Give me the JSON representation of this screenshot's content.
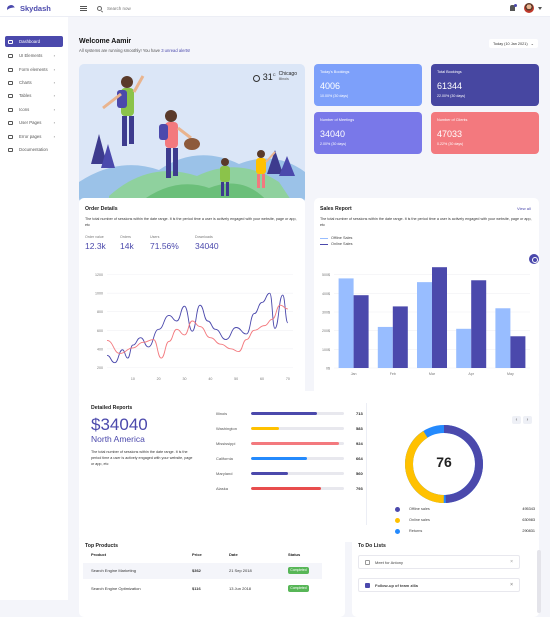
{
  "app": {
    "name": "Skydash"
  },
  "header": {
    "search_placeholder": "Search now"
  },
  "sidebar": {
    "items": [
      {
        "label": "Dashboard",
        "chevron": "",
        "active": true
      },
      {
        "label": "UI Elements",
        "chevron": "›"
      },
      {
        "label": "Form elements",
        "chevron": "›"
      },
      {
        "label": "Charts",
        "chevron": "›"
      },
      {
        "label": "Tables",
        "chevron": "›"
      },
      {
        "label": "Icons",
        "chevron": "›"
      },
      {
        "label": "User Pages",
        "chevron": "›"
      },
      {
        "label": "Error pages",
        "chevron": "›"
      },
      {
        "label": "Documentation",
        "chevron": ""
      }
    ]
  },
  "welcome": {
    "title": "Welcome Aamir",
    "subtitle_prefix": "All systems are running smoothly! You have",
    "unread_link": "3 unread alerts!"
  },
  "date_selector": {
    "label": "Today (10 Jan 2021)"
  },
  "weather": {
    "temp": "31",
    "unit": "C",
    "city": "Chicago",
    "state": "Illinois"
  },
  "stats": [
    {
      "label": "Today's Bookings",
      "value": "4006",
      "sub": "10.00% (30 days)",
      "color": "#7da0fa"
    },
    {
      "label": "Total Bookings",
      "value": "61344",
      "sub": "22.00% (30 days)",
      "color": "#4747a1"
    },
    {
      "label": "Number of Meetings",
      "value": "34040",
      "sub": "2.00% (30 days)",
      "color": "#7978e9"
    },
    {
      "label": "Number of Clients",
      "value": "47033",
      "sub": "0.22% (30 days)",
      "color": "#f3797e"
    }
  ],
  "order_details": {
    "title": "Order Details",
    "description": "The total number of sessions within the date range. It is the period time a user is actively engaged with your website, page or app, etc",
    "metrics": [
      {
        "label": "Order value",
        "value": "12.3k"
      },
      {
        "label": "Orders",
        "value": "14k"
      },
      {
        "label": "Users",
        "value": "71.56%"
      },
      {
        "label": "Downloads",
        "value": "34040"
      }
    ]
  },
  "sales_report": {
    "title": "Sales Report",
    "view_all": "View all",
    "description": "The total number of sessions within the date range. It is the period time a user is actively engaged with your website, page or app, etc"
  },
  "detailed_reports": {
    "title": "Detailed Reports",
    "amount": "$34040",
    "region": "North America",
    "description": "The total number of sessions within the date range. It is the period time a user is actively engaged with your website, page or app, etc",
    "regions": [
      {
        "name": "Illinois",
        "value": "713",
        "fraction": 0.71,
        "color": "#4b49ac"
      },
      {
        "name": "Washington",
        "value": "583",
        "fraction": 0.3,
        "color": "#ffc100"
      },
      {
        "name": "Mississippi",
        "value": "924",
        "fraction": 0.95,
        "color": "#f3797e"
      },
      {
        "name": "California",
        "value": "664",
        "fraction": 0.6,
        "color": "#248afd"
      },
      {
        "name": "Maryland",
        "value": "560",
        "fraction": 0.4,
        "color": "#4b49ac"
      },
      {
        "name": "Alaska",
        "value": "793",
        "fraction": 0.75,
        "color": "#e84d4d"
      }
    ],
    "donut": {
      "center": "76",
      "items": [
        {
          "label": "Offline sales",
          "amount": "495343",
          "color": "#4b49ac"
        },
        {
          "label": "Online sales",
          "amount": "630983",
          "color": "#ffc100"
        },
        {
          "label": "Returns",
          "amount": "290831",
          "color": "#248afd"
        }
      ]
    }
  },
  "top_products": {
    "title": "Top Products",
    "headers": [
      "Product",
      "Price",
      "Date",
      "Status"
    ],
    "rows": [
      {
        "product": "Search Engine Marketing",
        "price": "$362",
        "date": "21 Sep 2018",
        "status": "Completed"
      },
      {
        "product": "Search Engine Optimization",
        "price": "$116",
        "date": "13 Jun 2018",
        "status": "Completed"
      }
    ]
  },
  "todo": {
    "title": "To Do Lists",
    "items": [
      {
        "text": "Meet for Antony",
        "checked": false
      },
      {
        "text": "Follow-up of team zilla",
        "checked": true
      }
    ]
  },
  "chart_data": [
    {
      "type": "line",
      "title": "",
      "x": [
        10,
        20,
        30,
        40,
        50,
        60,
        70
      ],
      "xlim": [
        0,
        72
      ],
      "ylim": [
        150,
        1250
      ],
      "yticks": [
        200,
        400,
        600,
        800,
        1000,
        1200
      ],
      "series": [
        {
          "color": "#4b49ac",
          "points": [
            [
              0,
              330
            ],
            [
              3,
              250
            ],
            [
              6,
              390
            ],
            [
              8,
              300
            ],
            [
              10,
              440
            ],
            [
              13,
              520
            ],
            [
              16,
              420
            ],
            [
              20,
              610
            ],
            [
              24,
              760
            ],
            [
              27,
              700
            ],
            [
              30,
              860
            ],
            [
              33,
              590
            ],
            [
              36,
              870
            ],
            [
              39,
              700
            ],
            [
              42,
              610
            ],
            [
              46,
              500
            ],
            [
              50,
              630
            ],
            [
              54,
              560
            ],
            [
              57,
              780
            ],
            [
              60,
              900
            ],
            [
              63,
              1000
            ],
            [
              65,
              620
            ],
            [
              68,
              980
            ],
            [
              70,
              680
            ]
          ]
        },
        {
          "color": "#f3797e",
          "points": [
            [
              0,
              490
            ],
            [
              5,
              350
            ],
            [
              10,
              410
            ],
            [
              14,
              470
            ],
            [
              18,
              500
            ],
            [
              21,
              300
            ],
            [
              24,
              480
            ],
            [
              27,
              610
            ],
            [
              30,
              550
            ],
            [
              33,
              700
            ],
            [
              36,
              640
            ],
            [
              40,
              520
            ],
            [
              44,
              450
            ],
            [
              48,
              400
            ],
            [
              51,
              370
            ],
            [
              54,
              500
            ],
            [
              57,
              600
            ],
            [
              61,
              650
            ],
            [
              64,
              720
            ],
            [
              67,
              870
            ],
            [
              70,
              830
            ]
          ]
        }
      ]
    },
    {
      "type": "bar",
      "title": "",
      "categories": [
        "Jan",
        "Feb",
        "Mar",
        "Apr",
        "May"
      ],
      "ylim": [
        0,
        600
      ],
      "yticks": [
        "0$",
        "100$",
        "200$",
        "300$",
        "400$",
        "500$"
      ],
      "legend": "top-left",
      "series": [
        {
          "name": "Offline Sales",
          "color": "#98bdff",
          "values": [
            480,
            220,
            460,
            210,
            320
          ]
        },
        {
          "name": "Online Sales",
          "color": "#4b49ac",
          "values": [
            390,
            330,
            540,
            470,
            170
          ]
        }
      ]
    }
  ],
  "colors": {
    "accent": "#4b49ac",
    "background": "#f4f5fa",
    "success": "#57b657"
  }
}
